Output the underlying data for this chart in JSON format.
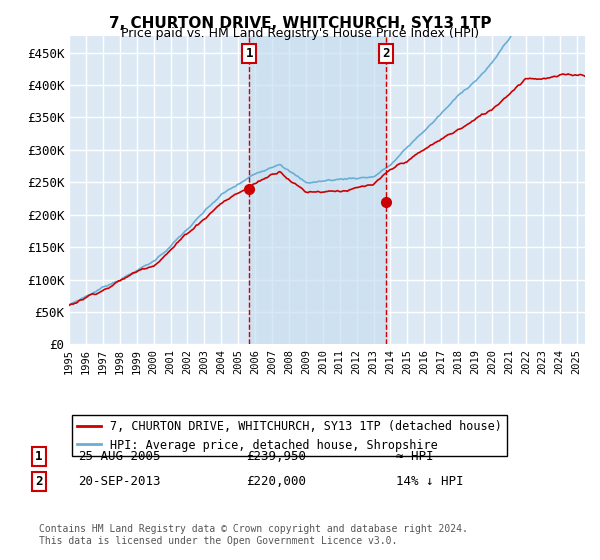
{
  "title": "7, CHURTON DRIVE, WHITCHURCH, SY13 1TP",
  "subtitle": "Price paid vs. HM Land Registry's House Price Index (HPI)",
  "ylabel_ticks": [
    "£0",
    "£50K",
    "£100K",
    "£150K",
    "£200K",
    "£250K",
    "£300K",
    "£350K",
    "£400K",
    "£450K"
  ],
  "ytick_values": [
    0,
    50000,
    100000,
    150000,
    200000,
    250000,
    300000,
    350000,
    400000,
    450000
  ],
  "ylim": [
    0,
    475000
  ],
  "xlim_start": 1995.0,
  "xlim_end": 2025.5,
  "bg_color": "#dce9f5",
  "shade_color": "#c8dff0",
  "grid_color": "#ffffff",
  "hpi_color": "#6aaed6",
  "price_color": "#cc0000",
  "sale1_x": 2005.65,
  "sale1_y": 239950,
  "sale2_x": 2013.72,
  "sale2_y": 220000,
  "legend_line1": "7, CHURTON DRIVE, WHITCHURCH, SY13 1TP (detached house)",
  "legend_line2": "HPI: Average price, detached house, Shropshire",
  "annotation1_date": "25-AUG-2005",
  "annotation1_price": "£239,950",
  "annotation1_rel": "≈ HPI",
  "annotation2_date": "20-SEP-2013",
  "annotation2_price": "£220,000",
  "annotation2_rel": "14% ↓ HPI",
  "footnote": "Contains HM Land Registry data © Crown copyright and database right 2024.\nThis data is licensed under the Open Government Licence v3.0.",
  "xtick_years": [
    1995,
    1996,
    1997,
    1998,
    1999,
    2000,
    2001,
    2002,
    2003,
    2004,
    2005,
    2006,
    2007,
    2008,
    2009,
    2010,
    2011,
    2012,
    2013,
    2014,
    2015,
    2016,
    2017,
    2018,
    2019,
    2020,
    2021,
    2022,
    2023,
    2024,
    2025
  ]
}
